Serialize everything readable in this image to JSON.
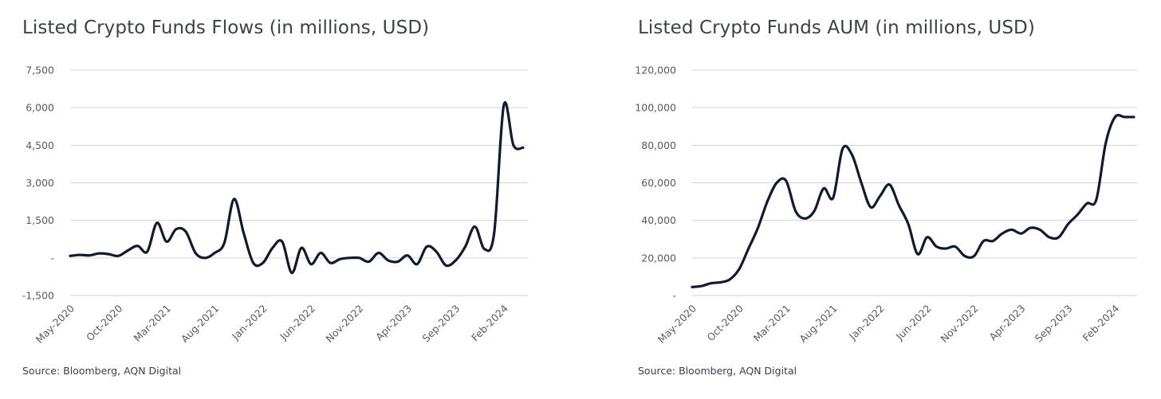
{
  "chart_data": [
    {
      "type": "line",
      "title": "Listed Crypto Funds Flows (in millions, USD)",
      "source": "Source: Bloomberg, AQN Digital",
      "xlabel": "",
      "ylabel": "",
      "ylim": [
        -1500,
        7500
      ],
      "y_ticks": [
        -1500,
        0,
        1500,
        3000,
        4500,
        6000,
        7500
      ],
      "y_tick_labels": [
        "-1,500",
        "-",
        "1,500",
        "3,000",
        "4,500",
        "6,000",
        "7,500"
      ],
      "x_range": [
        "2020-05",
        "2024-04"
      ],
      "x_ticks": [
        "2020-05",
        "2020-10",
        "2021-03",
        "2021-08",
        "2022-01",
        "2022-06",
        "2022-11",
        "2023-04",
        "2023-09",
        "2024-02"
      ],
      "x_tick_labels": [
        "May-2020",
        "Oct-2020",
        "Mar-2021",
        "Aug-2021",
        "Jan-2022",
        "Jun-2022",
        "Nov-2022",
        "Apr-2023",
        "Sep-2023",
        "Feb-2024"
      ],
      "grid": true,
      "legend": "none",
      "series": [
        {
          "color": "#111a2e",
          "x": [
            "2020-05",
            "2020-06",
            "2020-07",
            "2020-08",
            "2020-09",
            "2020-10",
            "2020-11",
            "2020-12",
            "2021-01",
            "2021-02",
            "2021-03",
            "2021-04",
            "2021-05",
            "2021-06",
            "2021-07",
            "2021-08",
            "2021-09",
            "2021-10",
            "2021-11",
            "2021-12",
            "2022-01",
            "2022-02",
            "2022-03",
            "2022-04",
            "2022-05",
            "2022-06",
            "2022-07",
            "2022-08",
            "2022-09",
            "2022-10",
            "2022-11",
            "2022-12",
            "2023-01",
            "2023-02",
            "2023-03",
            "2023-04",
            "2023-05",
            "2023-06",
            "2023-07",
            "2023-08",
            "2023-09",
            "2023-10",
            "2023-11",
            "2023-12",
            "2024-01",
            "2024-02",
            "2024-03",
            "2024-04"
          ],
          "values": [
            80,
            120,
            100,
            180,
            150,
            80,
            300,
            480,
            250,
            1400,
            650,
            1150,
            1050,
            200,
            0,
            200,
            600,
            2350,
            1000,
            -200,
            -200,
            400,
            650,
            -600,
            400,
            -250,
            200,
            -200,
            -50,
            0,
            0,
            -150,
            200,
            -100,
            -150,
            100,
            -250,
            450,
            250,
            -300,
            -100,
            450,
            1250,
            350,
            1000,
            6100,
            4500,
            4400
          ]
        }
      ]
    },
    {
      "type": "line",
      "title": "Listed Crypto Funds AUM (in millions, USD)",
      "source": "Source: Bloomberg, AQN Digital",
      "xlabel": "",
      "ylabel": "",
      "ylim": [
        0,
        120000
      ],
      "y_ticks": [
        0,
        20000,
        40000,
        60000,
        80000,
        100000,
        120000
      ],
      "y_tick_labels": [
        "-",
        "20,000",
        "40,000",
        "60,000",
        "80,000",
        "100,000",
        "120,000"
      ],
      "x_range": [
        "2020-05",
        "2024-04"
      ],
      "x_ticks": [
        "2020-05",
        "2020-10",
        "2021-03",
        "2021-08",
        "2022-01",
        "2022-06",
        "2022-11",
        "2023-04",
        "2023-09",
        "2024-02"
      ],
      "x_tick_labels": [
        "May-2020",
        "Oct-2020",
        "Mar-2021",
        "Aug-2021",
        "Jan-2022",
        "Jun-2022",
        "Nov-2022",
        "Apr-2023",
        "Sep-2023",
        "Feb-2024"
      ],
      "grid": true,
      "legend": "none",
      "series": [
        {
          "color": "#111a2e",
          "x": [
            "2020-05",
            "2020-06",
            "2020-07",
            "2020-08",
            "2020-09",
            "2020-10",
            "2020-11",
            "2020-12",
            "2021-01",
            "2021-02",
            "2021-03",
            "2021-04",
            "2021-05",
            "2021-06",
            "2021-07",
            "2021-08",
            "2021-09",
            "2021-10",
            "2021-11",
            "2021-12",
            "2022-01",
            "2022-02",
            "2022-03",
            "2022-04",
            "2022-05",
            "2022-06",
            "2022-07",
            "2022-08",
            "2022-09",
            "2022-10",
            "2022-11",
            "2022-12",
            "2023-01",
            "2023-02",
            "2023-03",
            "2023-04",
            "2023-05",
            "2023-06",
            "2023-07",
            "2023-08",
            "2023-09",
            "2023-10",
            "2023-11",
            "2023-12",
            "2024-01",
            "2024-02",
            "2024-03",
            "2024-04"
          ],
          "values": [
            4500,
            5000,
            6500,
            7000,
            8500,
            14000,
            25000,
            36000,
            50000,
            60000,
            61000,
            45000,
            41000,
            45000,
            57000,
            52000,
            78000,
            75000,
            60000,
            47000,
            53000,
            59000,
            48000,
            38000,
            22000,
            31000,
            26000,
            25000,
            26000,
            21000,
            21000,
            29000,
            29000,
            33000,
            35000,
            33000,
            36000,
            35000,
            31000,
            31000,
            38000,
            43000,
            49000,
            51000,
            81000,
            95000,
            95000,
            95000
          ]
        }
      ]
    }
  ]
}
